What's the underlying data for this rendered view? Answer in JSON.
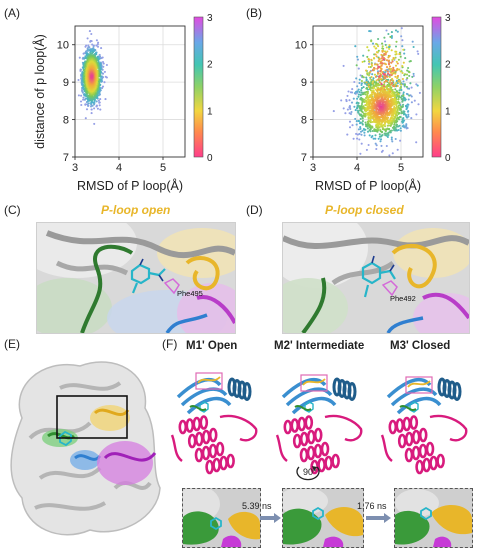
{
  "panels": {
    "A": "(A)",
    "B": "(B)",
    "C": "(C)",
    "D": "(D)",
    "E": "(E)",
    "F": "(F)"
  },
  "chart_data": [
    {
      "panel": "A",
      "type": "scatter",
      "xlabel": "RMSD of P loop(Å)",
      "ylabel": "distance of p loop(Å)",
      "xlim": [
        3,
        5.5
      ],
      "ylim": [
        7,
        10.5
      ],
      "xticks": [
        "3",
        "4",
        "5"
      ],
      "yticks": [
        "7",
        "8",
        "9",
        "10"
      ],
      "colorbar": {
        "min": 0,
        "max": 3,
        "ticks": [
          "0",
          "1",
          "2",
          "3"
        ]
      },
      "cluster": {
        "center_x": 3.38,
        "center_y": 9.15,
        "spread_x": 0.1,
        "spread_y": 0.33
      },
      "grid": true
    },
    {
      "panel": "B",
      "type": "scatter",
      "xlabel": "RMSD of P loop(Å)",
      "ylabel": "",
      "xlim": [
        3,
        5.5
      ],
      "ylim": [
        7,
        10.5
      ],
      "xticks": [
        "3",
        "4",
        "5"
      ],
      "yticks": [
        "7",
        "8",
        "9",
        "10"
      ],
      "colorbar": {
        "min": 0,
        "max": 3,
        "ticks": [
          "0",
          "1",
          "2",
          "3"
        ]
      },
      "cluster": {
        "center_x": 4.55,
        "center_y": 8.35,
        "spread_x": 0.28,
        "spread_y": 0.42
      },
      "grid": true
    }
  ],
  "structures": {
    "C_title": "P-loop open",
    "D_title": "P-loop closed",
    "C_residue": "Phe495",
    "D_residue": "Phe492"
  },
  "states": [
    {
      "title": "M1' Open"
    },
    {
      "title": "M2' Intermediate"
    },
    {
      "title": "M3' Closed"
    }
  ],
  "rotation": "90°",
  "transitions": [
    "5.39 ns",
    "1.76 ns"
  ],
  "colors": {
    "p_loop": "#e8b62a",
    "helix": "#1f5c8a",
    "kinase_body": "#d81b7d",
    "green_region": "#2f8f2f",
    "blue_region": "#2f7fd0",
    "magenta_region": "#c63ad6"
  }
}
